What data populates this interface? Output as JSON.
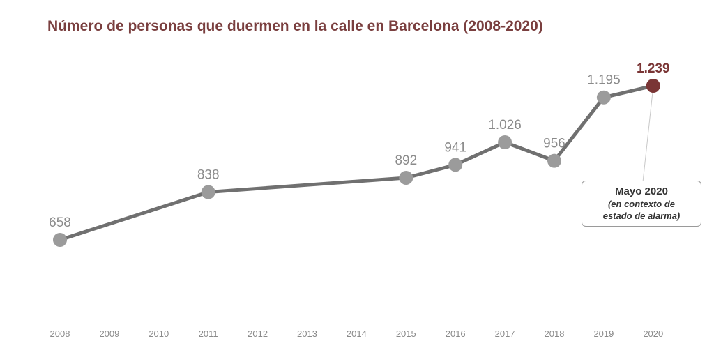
{
  "chart_data": {
    "type": "line",
    "title": "Número de personas que duermen en la calle en Barcelona (2008-2020)",
    "x_ticks": [
      "2008",
      "2009",
      "2010",
      "2011",
      "2012",
      "2013",
      "2014",
      "2015",
      "2016",
      "2017",
      "2018",
      "2019",
      "2020"
    ],
    "points": [
      {
        "x": 2008,
        "y": 658,
        "label": "658"
      },
      {
        "x": 2011,
        "y": 838,
        "label": "838"
      },
      {
        "x": 2015,
        "y": 892,
        "label": "892"
      },
      {
        "x": 2016,
        "y": 941,
        "label": "941"
      },
      {
        "x": 2017,
        "y": 1026,
        "label": "1.026"
      },
      {
        "x": 2018,
        "y": 956,
        "label": "956"
      },
      {
        "x": 2019,
        "y": 1195,
        "label": "1.195"
      },
      {
        "x": 2020,
        "y": 1239,
        "label": "1.239",
        "highlight": true
      }
    ],
    "annotation": {
      "heading": "Mayo 2020",
      "lines": [
        "(en contexto de",
        "estado de alarma)"
      ]
    },
    "grid": false,
    "colors": {
      "line": "#707070",
      "marker": "#9b9b9b",
      "highlight": "#7a3535",
      "label": "#8a8a8a",
      "title": "#7a3f3f"
    }
  }
}
